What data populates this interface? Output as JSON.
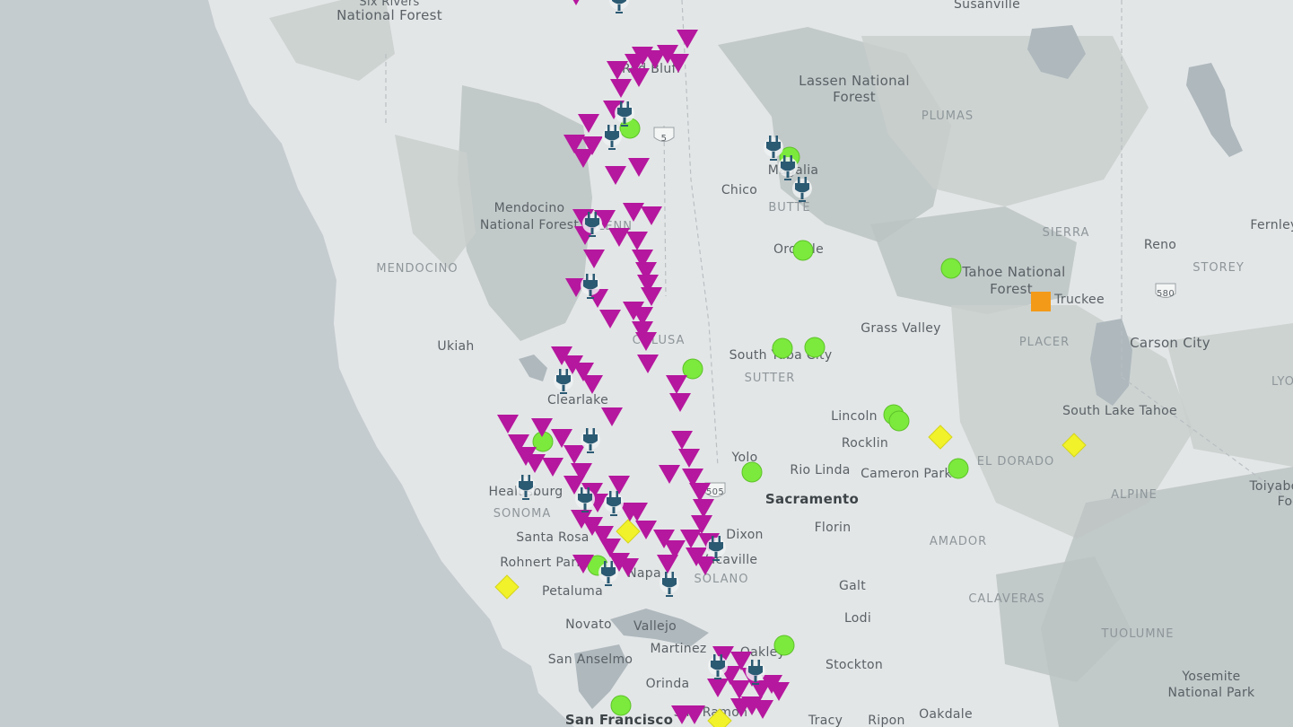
{
  "map": {
    "colors": {
      "ocean": "#c5ccd0",
      "land": "#e3e6e7",
      "forest": "#c9cfcd",
      "mountain": "#bcc3c3",
      "water": "#aeb8bd",
      "label": "#5a6166",
      "region_label": "#8e969a",
      "curtailment_marker": "#b5179e",
      "ev_charger_marker": "#2b5a73",
      "green_marker": "#7bea3c",
      "yellow_marker": "#f2f22a",
      "orange_marker": "#f39a19"
    },
    "icons": {
      "down-triangle": "triangle-down-icon",
      "plug": "ev-plug-icon",
      "circle": "green-circle-icon",
      "diamond": "yellow-diamond-icon",
      "square": "orange-square-icon"
    },
    "labels": [
      {
        "id": "six-rivers",
        "text": "Six Rivers"
      },
      {
        "id": "six-rivers-2",
        "text": "National Forest"
      },
      {
        "id": "susanville",
        "text": "Susanville"
      },
      {
        "id": "red-bluff",
        "text": "Red Bluff"
      },
      {
        "id": "lassen",
        "text": "Lassen National"
      },
      {
        "id": "lassen-2",
        "text": "Forest"
      },
      {
        "id": "plumas",
        "text": "PLUMAS"
      },
      {
        "id": "i5",
        "text": "5"
      },
      {
        "id": "magalia",
        "text": "Magalia"
      },
      {
        "id": "chico",
        "text": "Chico"
      },
      {
        "id": "butte",
        "text": "BUTTE"
      },
      {
        "id": "mendocino-nf",
        "text": "Mendocino"
      },
      {
        "id": "mendocino-nf-2",
        "text": "National Forest"
      },
      {
        "id": "glenn",
        "text": "GLENN"
      },
      {
        "id": "sierra",
        "text": "SIERRA"
      },
      {
        "id": "reno",
        "text": "Reno"
      },
      {
        "id": "fernley",
        "text": "Fernley"
      },
      {
        "id": "oroville",
        "text": "Oroville"
      },
      {
        "id": "mendocino",
        "text": "MENDOCINO"
      },
      {
        "id": "storey",
        "text": "STOREY"
      },
      {
        "id": "tahoe-nf",
        "text": "Tahoe National"
      },
      {
        "id": "tahoe-nf-2",
        "text": "Forest"
      },
      {
        "id": "truckee",
        "text": "Truckee"
      },
      {
        "id": "i580",
        "text": "580"
      },
      {
        "id": "grass-valley",
        "text": "Grass Valley"
      },
      {
        "id": "ukiah",
        "text": "Ukiah"
      },
      {
        "id": "colusa",
        "text": "COLUSA"
      },
      {
        "id": "placer",
        "text": "PLACER"
      },
      {
        "id": "carson-city",
        "text": "Carson City"
      },
      {
        "id": "south-yuba",
        "text": "South Yuba City"
      },
      {
        "id": "sutter",
        "text": "SUTTER"
      },
      {
        "id": "lyon",
        "text": "LYO"
      },
      {
        "id": "clearlake",
        "text": "Clearlake"
      },
      {
        "id": "lincoln",
        "text": "Lincoln"
      },
      {
        "id": "south-lake-tahoe",
        "text": "South Lake Tahoe"
      },
      {
        "id": "rocklin",
        "text": "Rocklin"
      },
      {
        "id": "healdsburg",
        "text": "Healdsburg"
      },
      {
        "id": "yolo",
        "text": "Yolo"
      },
      {
        "id": "el-dorado",
        "text": "EL DORADO"
      },
      {
        "id": "rio-linda",
        "text": "Rio Linda"
      },
      {
        "id": "cameron-park",
        "text": "Cameron Park"
      },
      {
        "id": "toiyabe",
        "text": "Toiyabe"
      },
      {
        "id": "toiyabe-2",
        "text": "Fo"
      },
      {
        "id": "i505",
        "text": "505"
      },
      {
        "id": "sacramento",
        "text": "Sacramento"
      },
      {
        "id": "alpine",
        "text": "ALPINE"
      },
      {
        "id": "sonoma",
        "text": "SONOMA"
      },
      {
        "id": "florin",
        "text": "Florin"
      },
      {
        "id": "santa-rosa",
        "text": "Santa Rosa"
      },
      {
        "id": "dixon",
        "text": "Dixon"
      },
      {
        "id": "amador",
        "text": "AMADOR"
      },
      {
        "id": "rohnert-park",
        "text": "Rohnert Park"
      },
      {
        "id": "vacaville",
        "text": "Vacaville"
      },
      {
        "id": "napa",
        "text": "Napa"
      },
      {
        "id": "solano",
        "text": "SOLANO"
      },
      {
        "id": "petaluma",
        "text": "Petaluma"
      },
      {
        "id": "galt",
        "text": "Galt"
      },
      {
        "id": "calaveras",
        "text": "CALAVERAS"
      },
      {
        "id": "lodi",
        "text": "Lodi"
      },
      {
        "id": "novato",
        "text": "Novato"
      },
      {
        "id": "vallejo",
        "text": "Vallejo"
      },
      {
        "id": "tuolumne",
        "text": "TUOLUMNE"
      },
      {
        "id": "martinez",
        "text": "Martinez"
      },
      {
        "id": "oakley",
        "text": "Oakley"
      },
      {
        "id": "san-anselmo",
        "text": "San Anselmo"
      },
      {
        "id": "stockton",
        "text": "Stockton"
      },
      {
        "id": "yosemite",
        "text": "Yosemite"
      },
      {
        "id": "yosemite-2",
        "text": "National Park"
      },
      {
        "id": "orinda",
        "text": "Orinda"
      },
      {
        "id": "san-ramon",
        "text": "San Ramon"
      },
      {
        "id": "san-francisco",
        "text": "San Francisco"
      },
      {
        "id": "tracy",
        "text": "Tracy"
      },
      {
        "id": "ripon",
        "text": "Ripon"
      },
      {
        "id": "oakdale",
        "text": "Oakdale"
      }
    ]
  }
}
